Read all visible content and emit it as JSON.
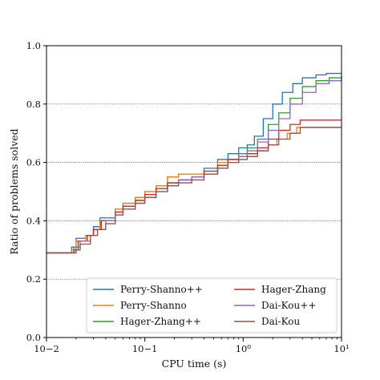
{
  "chart_data": {
    "type": "line",
    "title": "",
    "xlabel": "CPU time (s)",
    "ylabel": "Ratio of problems solved",
    "xscale": "log",
    "xlim": [
      0.01,
      10
    ],
    "ylim": [
      0.0,
      1.0
    ],
    "grid": "horizontal dotted",
    "legend_placement": "lower-right, two columns",
    "x_ticks": [
      0.01,
      0.1,
      1,
      10
    ],
    "x_tick_labels": [
      "10−2",
      "10−1",
      "10⁰",
      "10¹"
    ],
    "y_ticks": [
      0.0,
      0.2,
      0.4,
      0.6,
      0.8,
      1.0
    ],
    "y_tick_labels": [
      "0.0",
      "0.2",
      "0.4",
      "0.6",
      "0.8",
      "1.0"
    ],
    "series": [
      {
        "name": "Perry-Shanno++",
        "color": "#1f77b4",
        "points": [
          [
            0.01,
            0.29
          ],
          [
            0.016,
            0.29
          ],
          [
            0.018,
            0.31
          ],
          [
            0.02,
            0.34
          ],
          [
            0.025,
            0.35
          ],
          [
            0.03,
            0.38
          ],
          [
            0.035,
            0.41
          ],
          [
            0.05,
            0.44
          ],
          [
            0.06,
            0.46
          ],
          [
            0.08,
            0.48
          ],
          [
            0.1,
            0.5
          ],
          [
            0.13,
            0.52
          ],
          [
            0.17,
            0.55
          ],
          [
            0.22,
            0.56
          ],
          [
            0.3,
            0.56
          ],
          [
            0.4,
            0.58
          ],
          [
            0.55,
            0.61
          ],
          [
            0.7,
            0.63
          ],
          [
            0.9,
            0.65
          ],
          [
            1.1,
            0.66
          ],
          [
            1.3,
            0.69
          ],
          [
            1.6,
            0.75
          ],
          [
            2.0,
            0.8
          ],
          [
            2.5,
            0.84
          ],
          [
            3.2,
            0.87
          ],
          [
            4.0,
            0.89
          ],
          [
            5.5,
            0.9
          ],
          [
            7.0,
            0.905
          ],
          [
            10,
            0.905
          ]
        ]
      },
      {
        "name": "Perry-Shanno",
        "color": "#ff7f0e",
        "points": [
          [
            0.01,
            0.29
          ],
          [
            0.016,
            0.29
          ],
          [
            0.018,
            0.3
          ],
          [
            0.02,
            0.33
          ],
          [
            0.025,
            0.35
          ],
          [
            0.03,
            0.37
          ],
          [
            0.035,
            0.4
          ],
          [
            0.05,
            0.44
          ],
          [
            0.06,
            0.46
          ],
          [
            0.08,
            0.48
          ],
          [
            0.1,
            0.5
          ],
          [
            0.13,
            0.52
          ],
          [
            0.17,
            0.55
          ],
          [
            0.22,
            0.56
          ],
          [
            0.3,
            0.56
          ],
          [
            0.4,
            0.57
          ],
          [
            0.55,
            0.6
          ],
          [
            0.7,
            0.61
          ],
          [
            0.9,
            0.62
          ],
          [
            1.1,
            0.63
          ],
          [
            1.4,
            0.64
          ],
          [
            1.8,
            0.66
          ],
          [
            2.2,
            0.68
          ],
          [
            2.8,
            0.7
          ],
          [
            3.5,
            0.72
          ],
          [
            5.0,
            0.72
          ],
          [
            10,
            0.72
          ]
        ]
      },
      {
        "name": "Hager-Zhang++",
        "color": "#2ca02c",
        "points": [
          [
            0.01,
            0.29
          ],
          [
            0.017,
            0.29
          ],
          [
            0.019,
            0.31
          ],
          [
            0.021,
            0.33
          ],
          [
            0.026,
            0.35
          ],
          [
            0.03,
            0.37
          ],
          [
            0.036,
            0.4
          ],
          [
            0.05,
            0.43
          ],
          [
            0.06,
            0.45
          ],
          [
            0.08,
            0.47
          ],
          [
            0.1,
            0.48
          ],
          [
            0.13,
            0.51
          ],
          [
            0.17,
            0.53
          ],
          [
            0.22,
            0.54
          ],
          [
            0.3,
            0.55
          ],
          [
            0.4,
            0.56
          ],
          [
            0.55,
            0.59
          ],
          [
            0.7,
            0.61
          ],
          [
            0.9,
            0.63
          ],
          [
            1.1,
            0.65
          ],
          [
            1.4,
            0.68
          ],
          [
            1.8,
            0.73
          ],
          [
            2.3,
            0.77
          ],
          [
            3.0,
            0.82
          ],
          [
            4.0,
            0.86
          ],
          [
            5.5,
            0.88
          ],
          [
            7.5,
            0.89
          ],
          [
            10,
            0.9
          ]
        ]
      },
      {
        "name": "Hager-Zhang",
        "color": "#d62728",
        "points": [
          [
            0.01,
            0.29
          ],
          [
            0.017,
            0.29
          ],
          [
            0.019,
            0.3
          ],
          [
            0.021,
            0.33
          ],
          [
            0.026,
            0.35
          ],
          [
            0.03,
            0.37
          ],
          [
            0.036,
            0.4
          ],
          [
            0.05,
            0.43
          ],
          [
            0.06,
            0.45
          ],
          [
            0.08,
            0.47
          ],
          [
            0.1,
            0.49
          ],
          [
            0.13,
            0.51
          ],
          [
            0.17,
            0.53
          ],
          [
            0.22,
            0.54
          ],
          [
            0.3,
            0.55
          ],
          [
            0.4,
            0.57
          ],
          [
            0.55,
            0.59
          ],
          [
            0.7,
            0.61
          ],
          [
            0.9,
            0.62
          ],
          [
            1.1,
            0.63
          ],
          [
            1.4,
            0.65
          ],
          [
            1.8,
            0.68
          ],
          [
            2.3,
            0.71
          ],
          [
            3.0,
            0.73
          ],
          [
            3.8,
            0.745
          ],
          [
            5.0,
            0.745
          ],
          [
            10,
            0.745
          ]
        ]
      },
      {
        "name": "Dai-Kou++",
        "color": "#9467bd",
        "points": [
          [
            0.01,
            0.29
          ],
          [
            0.018,
            0.29
          ],
          [
            0.02,
            0.31
          ],
          [
            0.022,
            0.33
          ],
          [
            0.028,
            0.35
          ],
          [
            0.033,
            0.37
          ],
          [
            0.04,
            0.4
          ],
          [
            0.05,
            0.42
          ],
          [
            0.06,
            0.44
          ],
          [
            0.08,
            0.46
          ],
          [
            0.1,
            0.48
          ],
          [
            0.13,
            0.5
          ],
          [
            0.17,
            0.52
          ],
          [
            0.22,
            0.54
          ],
          [
            0.3,
            0.55
          ],
          [
            0.4,
            0.56
          ],
          [
            0.55,
            0.58
          ],
          [
            0.7,
            0.6
          ],
          [
            0.9,
            0.62
          ],
          [
            1.1,
            0.64
          ],
          [
            1.4,
            0.67
          ],
          [
            1.8,
            0.71
          ],
          [
            2.3,
            0.75
          ],
          [
            3.0,
            0.8
          ],
          [
            4.0,
            0.84
          ],
          [
            5.5,
            0.87
          ],
          [
            7.5,
            0.88
          ],
          [
            10,
            0.89
          ]
        ]
      },
      {
        "name": "Dai-Kou",
        "color": "#8c564b",
        "points": [
          [
            0.01,
            0.29
          ],
          [
            0.018,
            0.29
          ],
          [
            0.02,
            0.3
          ],
          [
            0.022,
            0.32
          ],
          [
            0.028,
            0.35
          ],
          [
            0.033,
            0.37
          ],
          [
            0.04,
            0.39
          ],
          [
            0.05,
            0.42
          ],
          [
            0.06,
            0.44
          ],
          [
            0.08,
            0.46
          ],
          [
            0.1,
            0.48
          ],
          [
            0.13,
            0.5
          ],
          [
            0.17,
            0.52
          ],
          [
            0.22,
            0.53
          ],
          [
            0.3,
            0.54
          ],
          [
            0.4,
            0.56
          ],
          [
            0.55,
            0.58
          ],
          [
            0.7,
            0.6
          ],
          [
            0.9,
            0.61
          ],
          [
            1.1,
            0.62
          ],
          [
            1.4,
            0.64
          ],
          [
            1.8,
            0.66
          ],
          [
            2.3,
            0.68
          ],
          [
            3.0,
            0.7
          ],
          [
            3.8,
            0.72
          ],
          [
            5.0,
            0.72
          ],
          [
            10,
            0.72
          ]
        ]
      }
    ]
  }
}
